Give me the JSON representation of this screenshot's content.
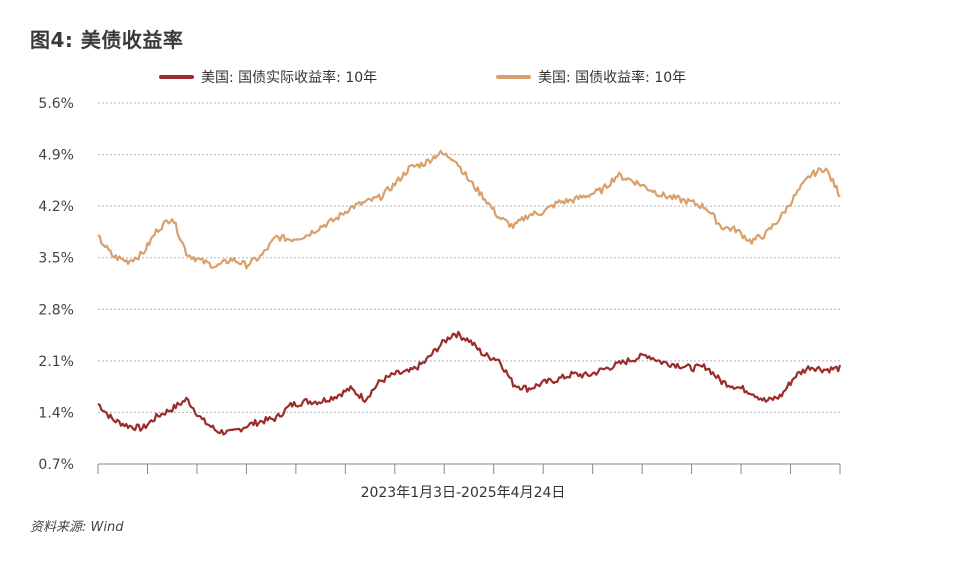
{
  "title": "图4: 美债收益率",
  "source": "资料来源: Wind",
  "chart_data": {
    "type": "line",
    "xlabel": "2023年1月3日-2025年4月24日",
    "ylabel": "",
    "ylim": [
      0.7,
      5.6
    ],
    "y_ticks": [
      "5.6%",
      "4.9%",
      "4.2%",
      "3.5%",
      "2.8%",
      "2.1%",
      "1.4%",
      "0.7%"
    ],
    "x_tick_count": 15,
    "legend_position": "top",
    "grid": "horizontal dotted",
    "colors": {
      "real": "#9b2c2c",
      "nominal": "#d9a06b",
      "grid": "#b5b5b5",
      "axis": "#888888"
    },
    "x": [
      0,
      0.02,
      0.04,
      0.06,
      0.08,
      0.1,
      0.12,
      0.14,
      0.16,
      0.18,
      0.2,
      0.22,
      0.24,
      0.26,
      0.28,
      0.3,
      0.32,
      0.34,
      0.36,
      0.38,
      0.4,
      0.42,
      0.44,
      0.46,
      0.48,
      0.5,
      0.52,
      0.54,
      0.56,
      0.58,
      0.6,
      0.62,
      0.64,
      0.66,
      0.68,
      0.7,
      0.72,
      0.74,
      0.76,
      0.78,
      0.8,
      0.82,
      0.84,
      0.86,
      0.88,
      0.9,
      0.92,
      0.94,
      0.96,
      0.98,
      1.0
    ],
    "series": [
      {
        "name": "美国: 国债实际收益率: 10年",
        "key": "real",
        "values": [
          1.52,
          1.3,
          1.22,
          1.18,
          1.35,
          1.45,
          1.58,
          1.3,
          1.15,
          1.12,
          1.22,
          1.28,
          1.32,
          1.5,
          1.55,
          1.55,
          1.62,
          1.72,
          1.58,
          1.82,
          1.92,
          1.95,
          2.08,
          2.3,
          2.48,
          2.38,
          2.18,
          2.12,
          1.78,
          1.72,
          1.8,
          1.85,
          1.92,
          1.9,
          1.98,
          2.05,
          2.12,
          2.18,
          2.08,
          2.05,
          2.0,
          2.02,
          1.82,
          1.75,
          1.68,
          1.55,
          1.62,
          1.9,
          2.02,
          1.98,
          2.0
        ]
      },
      {
        "name": "美国: 国债收益率: 10年",
        "key": "nominal",
        "values": [
          3.78,
          3.52,
          3.45,
          3.55,
          3.88,
          4.05,
          3.55,
          3.45,
          3.38,
          3.48,
          3.4,
          3.52,
          3.78,
          3.75,
          3.8,
          3.92,
          4.02,
          4.18,
          4.25,
          4.32,
          4.5,
          4.72,
          4.78,
          4.92,
          4.85,
          4.55,
          4.32,
          4.05,
          3.92,
          4.08,
          4.12,
          4.25,
          4.28,
          4.35,
          4.42,
          4.62,
          4.55,
          4.45,
          4.35,
          4.3,
          4.25,
          4.18,
          3.92,
          3.88,
          3.72,
          3.82,
          4.05,
          4.35,
          4.62,
          4.72,
          4.35
        ]
      }
    ]
  }
}
